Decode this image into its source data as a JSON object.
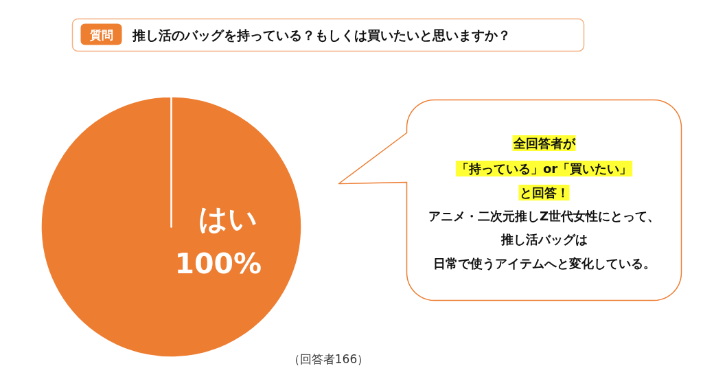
{
  "chart_data": {
    "type": "pie",
    "title": "推し活のバッグを持っている？もしくは買いたいと思いますか？",
    "categories": [
      "はい"
    ],
    "values": [
      100
    ],
    "colors": [
      "#ed7d31"
    ],
    "value_labels": [
      "100%"
    ],
    "annotations": [
      "質問",
      "全回答者が",
      "「持っている」or「買いたい」",
      "と回答！",
      "アニメ・二次元推しZ世代女性にとって、",
      "推し活バッグは",
      "日常で使うアイテムへと変化している。",
      "（回答者166）"
    ]
  }
}
